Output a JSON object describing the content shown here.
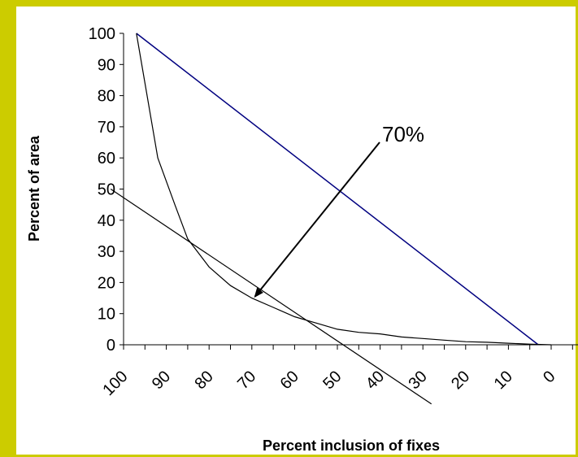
{
  "chart_data": {
    "type": "line",
    "xlabel": "Percent inclusion of fixes",
    "ylabel": "Percent of area",
    "x_ticks": [
      100,
      90,
      80,
      70,
      60,
      50,
      40,
      30,
      20,
      10,
      0
    ],
    "y_ticks": [
      0,
      10,
      20,
      30,
      40,
      50,
      60,
      70,
      80,
      90,
      100
    ],
    "xlim": [
      100,
      0
    ],
    "ylim": [
      0,
      100
    ],
    "series": [
      {
        "color": "#000080",
        "x": [
          97,
          3
        ],
        "y": [
          100,
          0
        ]
      },
      {
        "color": "#000000",
        "x": [
          97,
          92,
          88,
          85,
          80,
          75,
          70,
          65,
          60,
          55,
          50,
          45,
          40,
          35,
          30,
          25,
          20,
          15,
          10,
          5,
          0
        ],
        "y": [
          100,
          60,
          45,
          34,
          25,
          19,
          15,
          12,
          9,
          7,
          5,
          4,
          3.5,
          2.5,
          2,
          1.5,
          1,
          0.8,
          0.5,
          0.2,
          0
        ]
      },
      {
        "color": "#000000",
        "x": [
          103,
          28
        ],
        "y": [
          50,
          -19
        ]
      }
    ],
    "annotations": [
      {
        "text": "70%",
        "x": 70,
        "y": 15
      }
    ],
    "grid": false,
    "legend": "none"
  }
}
